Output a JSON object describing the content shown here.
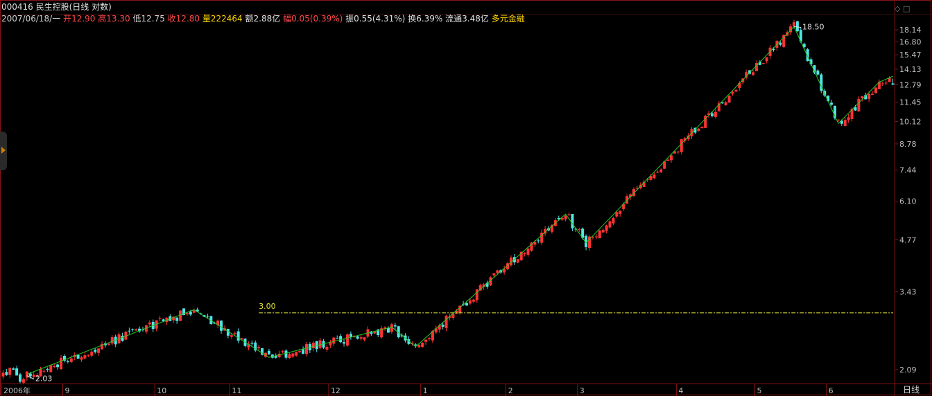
{
  "header": {
    "title": "000416 民生控股(日线 对数)",
    "date": "2007/06/18/一",
    "open_label": "开",
    "open": "12.90",
    "high_label": "高",
    "high": "13.30",
    "low_label": "低",
    "low": "12.75",
    "close_label": "收",
    "close": "12.80",
    "volume_label": "量",
    "volume": "222464",
    "amount_label": "额",
    "amount": "2.88亿",
    "change_label": "幅",
    "change": "0.05(0.39%)",
    "amplitude_label": "振",
    "amplitude": "0.55(4.31%)",
    "turnover_label": "换",
    "turnover": "6.39%",
    "float_label": "流通",
    "float": "3.48亿",
    "tag": "多元金融"
  },
  "period": "日线",
  "colors": {
    "up": "#ff3333",
    "down": "#4fe4e4",
    "zigzag": "#22cc22",
    "level": "#e8e840",
    "axis": "#8c1414",
    "grid": "#6e1a1a",
    "text": "#c0c0c0"
  },
  "chart_data": {
    "type": "candlestick",
    "scale": "log",
    "y_ticks": [
      18.14,
      16.8,
      15.47,
      14.13,
      12.79,
      11.45,
      10.12,
      8.78,
      7.44,
      6.1,
      4.77,
      3.43,
      2.09
    ],
    "x_tick_labels": [
      "2006年",
      "9",
      "10",
      "11",
      "12",
      "1",
      "2",
      "3",
      "4",
      "5",
      "6"
    ],
    "x_tick_index": [
      0,
      18,
      45,
      67,
      96,
      123,
      148,
      169,
      198,
      221,
      242
    ],
    "annotations": [
      {
        "text": "2.03",
        "value": 2.03,
        "index": 7
      },
      {
        "text": "18.50",
        "value": 18.5,
        "index": 232
      }
    ],
    "level_line": {
      "label": "3.00",
      "value": 3.0,
      "from_index": 75
    },
    "zigzag": [
      [
        7,
        2.03
      ],
      [
        56,
        3.06
      ],
      [
        78,
        2.26
      ],
      [
        114,
        2.74
      ],
      [
        121,
        2.42
      ],
      [
        165,
        5.62
      ],
      [
        171,
        4.68
      ],
      [
        232,
        18.5
      ],
      [
        245,
        10.0
      ],
      [
        257,
        13.0
      ]
    ],
    "zigzag_end_value": 13.5,
    "last_candle": {
      "open": 12.9,
      "high": 13.3,
      "low": 12.75,
      "close": 12.8
    }
  }
}
